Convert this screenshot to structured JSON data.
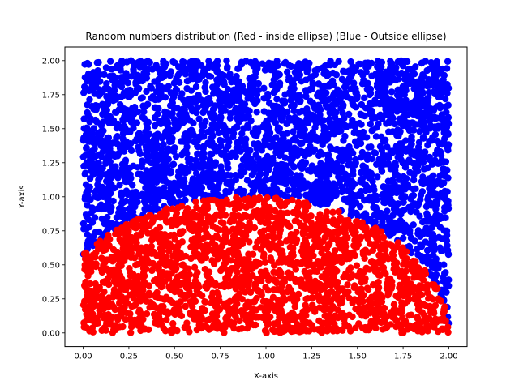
{
  "chart_data": {
    "type": "scatter",
    "title": "Random numbers distribution (Red - inside ellipse) (Blue - Outside ellipse)",
    "xlabel": "X-axis",
    "ylabel": "Y-axis",
    "xlim": [
      -0.1,
      2.1
    ],
    "ylim": [
      -0.1,
      2.1
    ],
    "xticks": [
      "0.00",
      "0.25",
      "0.50",
      "0.75",
      "1.00",
      "1.25",
      "1.50",
      "1.75",
      "2.00"
    ],
    "yticks": [
      "0.00",
      "0.25",
      "0.50",
      "0.75",
      "1.00",
      "1.25",
      "1.50",
      "1.75",
      "2.00"
    ],
    "grid": false,
    "legend": "none",
    "x_range": [
      0,
      2
    ],
    "y_range": [
      0,
      2
    ],
    "point_count": 5000,
    "ellipse": {
      "center_x": 0.9,
      "center_y": 0.0,
      "semi_axis_x": 1.1,
      "semi_axis_y": 1.0
    },
    "series": [
      {
        "color": "#ff0000",
        "condition": "inside ellipse"
      },
      {
        "color": "#0000ff",
        "condition": "outside ellipse"
      }
    ]
  }
}
